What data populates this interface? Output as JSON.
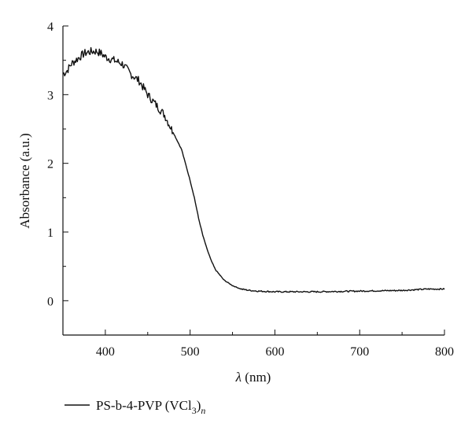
{
  "chart_data": {
    "type": "line",
    "xlabel_symbol": "λ",
    "xlabel_unit": " (nm)",
    "ylabel": "Absorbance (a.u.)",
    "xlim": [
      350,
      800
    ],
    "ylim": [
      -0.5,
      4
    ],
    "x_ticks": [
      400,
      500,
      600,
      700,
      800
    ],
    "y_ticks": [
      0,
      1,
      2,
      3,
      4
    ],
    "grid": false,
    "legend_position": "bottom-left",
    "series": [
      {
        "legend_main": "PS-b-4-PVP (VCl",
        "legend_sub": "3",
        "legend_close": ")",
        "legend_sub2": "n",
        "color": "#111111",
        "x": [
          350,
          355,
          360,
          365,
          370,
          375,
          380,
          385,
          390,
          395,
          400,
          410,
          420,
          430,
          440,
          450,
          460,
          470,
          480,
          490,
          500,
          505,
          510,
          515,
          520,
          525,
          530,
          540,
          550,
          560,
          570,
          580,
          600,
          620,
          650,
          700,
          750,
          780,
          800
        ],
        "y": [
          3.3,
          3.35,
          3.45,
          3.5,
          3.55,
          3.6,
          3.62,
          3.63,
          3.63,
          3.6,
          3.55,
          3.5,
          3.45,
          3.3,
          3.2,
          3.0,
          2.85,
          2.7,
          2.45,
          2.2,
          1.75,
          1.5,
          1.2,
          0.95,
          0.75,
          0.58,
          0.45,
          0.3,
          0.22,
          0.17,
          0.15,
          0.14,
          0.13,
          0.13,
          0.13,
          0.14,
          0.15,
          0.17,
          0.17
        ]
      }
    ]
  }
}
